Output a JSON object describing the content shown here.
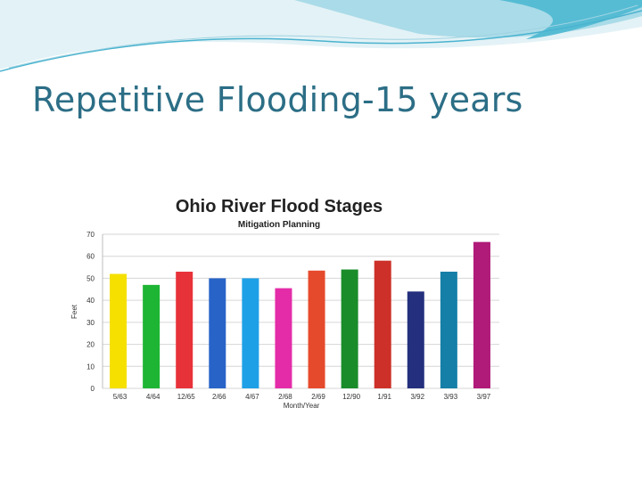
{
  "slide": {
    "title": "Repetitive Flooding-15 years",
    "colors": {
      "title": "#2c6e86",
      "wave_light": "#dbeef3",
      "wave_mid": "#a8d8e6",
      "wave_dark": "#3aaecb"
    }
  },
  "chart_data": {
    "type": "bar",
    "title": "Ohio River Flood Stages",
    "subtitle": "Mitigation Planning",
    "xlabel": "Month/Year",
    "ylabel": "Feet",
    "ylim": [
      0,
      70
    ],
    "yticks": [
      0,
      10,
      20,
      30,
      40,
      50,
      60,
      70
    ],
    "grid": true,
    "categories": [
      "5/63",
      "4/64",
      "12/65",
      "2/66",
      "4/67",
      "2/68",
      "2/69",
      "12/90",
      "1/91",
      "3/92",
      "3/93",
      "3/97"
    ],
    "values": [
      52,
      47,
      53,
      50,
      50,
      45.5,
      53.5,
      54,
      58,
      44,
      53,
      66.5
    ],
    "colors": [
      "#f5e000",
      "#1eb534",
      "#e8323a",
      "#2864c8",
      "#1ea0e6",
      "#e42ca8",
      "#e64a2c",
      "#1a8c2a",
      "#cc3028",
      "#24307e",
      "#157fa8",
      "#b01a78"
    ]
  }
}
